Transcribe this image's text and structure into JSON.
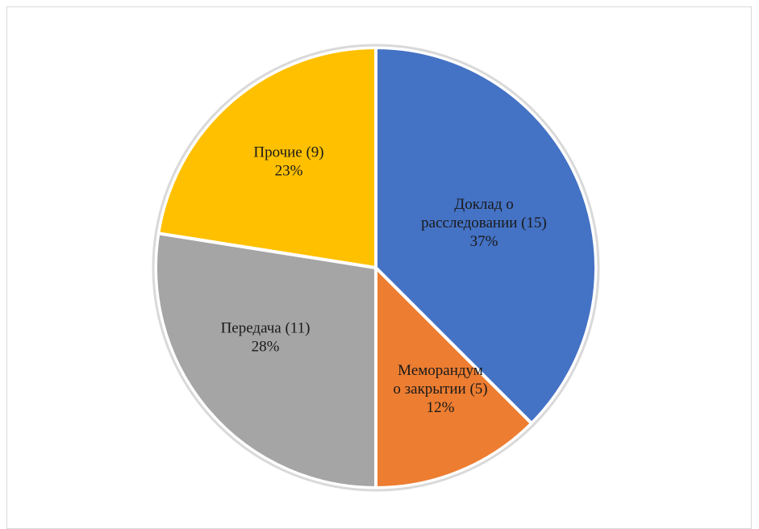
{
  "chart_data": {
    "type": "pie",
    "title": "",
    "slices": [
      {
        "label_lines": [
          "Доклад о",
          "расследовании (15)"
        ],
        "percent_label": "37%",
        "count": 15,
        "color": "#4472C4"
      },
      {
        "label_lines": [
          "Меморандум",
          "о закрытии (5)"
        ],
        "percent_label": "12%",
        "count": 5,
        "color": "#ED7D31"
      },
      {
        "label_lines": [
          "Передача (11)"
        ],
        "percent_label": "28%",
        "count": 11,
        "color": "#A5A5A5"
      },
      {
        "label_lines": [
          "Прочие (9)"
        ],
        "percent_label": "23%",
        "count": 9,
        "color": "#FFC000"
      }
    ],
    "start_angle_deg": 0,
    "direction": "clockwise",
    "legend": "none"
  }
}
